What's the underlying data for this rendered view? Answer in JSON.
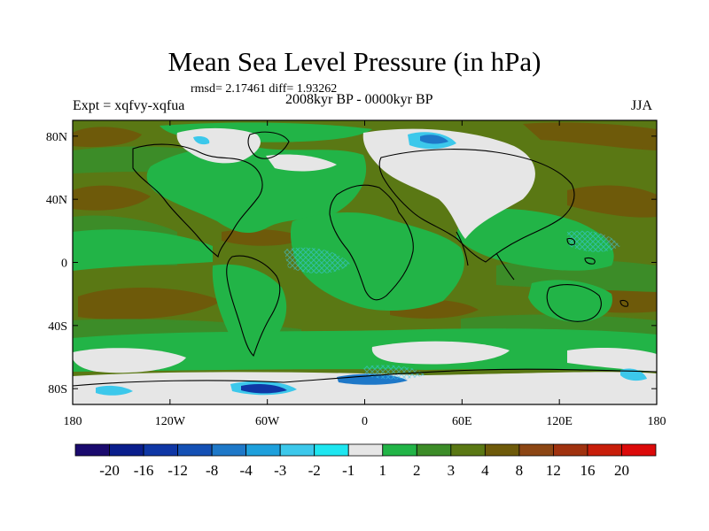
{
  "title": "Mean Sea Level Pressure (in hPa)",
  "stats": "rmsd= 2.17461 diff= 1.93262",
  "experiment": "Expt = xqfvy-xqfua",
  "period": "2008kyr BP - 0000kyr BP",
  "season": "JJA",
  "lon_ticks": [
    "180",
    "120W",
    "60W",
    "0",
    "60E",
    "120E",
    "180"
  ],
  "lat_ticks": [
    "80N",
    "40N",
    "0",
    "40S",
    "80S"
  ],
  "colorbar": {
    "labels": [
      "-20",
      "-16",
      "-12",
      "-8",
      "-4",
      "-3",
      "-2",
      "-1",
      "1",
      "2",
      "3",
      "4",
      "8",
      "12",
      "16",
      "20"
    ],
    "colors": [
      "#1a0a6e",
      "#0a1e8c",
      "#0f37a5",
      "#1450b4",
      "#1e78c8",
      "#1ea0dc",
      "#3cc8eb",
      "#1ee6f0",
      "#e6e6e6",
      "#22b447",
      "#3c8c28",
      "#5a7814",
      "#6e5a0a",
      "#8c4614",
      "#a0320f",
      "#c81e0a",
      "#dc0a0a"
    ]
  },
  "map_colors": {
    "ocean_base": "#5a7814",
    "green_mid": "#3c8c28",
    "green_light": "#22b447",
    "neutral": "#e6e6e6",
    "brown": "#6e5a0a",
    "cyan": "#3cc8eb",
    "blue": "#1e78c8",
    "dark_blue": "#0f37a5"
  }
}
